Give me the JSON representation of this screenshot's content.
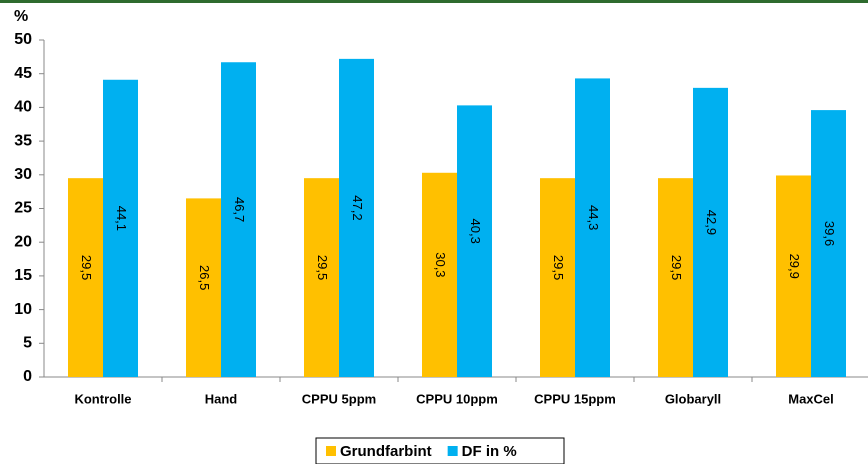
{
  "chart_data": {
    "type": "bar",
    "y_label": "%",
    "categories": [
      "Kontrolle",
      "Hand",
      "CPPU 5ppm",
      "CPPU 10ppm",
      "CPPU 15ppm",
      "Globaryll",
      "MaxCel"
    ],
    "series": [
      {
        "name": "Grundfarbint",
        "color": "#FFC000",
        "values": [
          29.5,
          26.5,
          29.5,
          30.3,
          29.5,
          29.5,
          29.9
        ],
        "value_labels": [
          "29,5",
          "26,5",
          "29,5",
          "30,3",
          "29,5",
          "29,5",
          "29,9"
        ]
      },
      {
        "name": "DF in %",
        "color": "#00B0F0",
        "values": [
          44.1,
          46.7,
          47.2,
          40.3,
          44.3,
          42.9,
          39.6
        ],
        "value_labels": [
          "44,1",
          "46,7",
          "47,2",
          "40,3",
          "44,3",
          "42,9",
          "39,6"
        ]
      }
    ],
    "ylim": [
      0,
      50
    ],
    "yticks": [
      0,
      5,
      10,
      15,
      20,
      25,
      30,
      35,
      40,
      45,
      50
    ],
    "legend": "bottom"
  }
}
